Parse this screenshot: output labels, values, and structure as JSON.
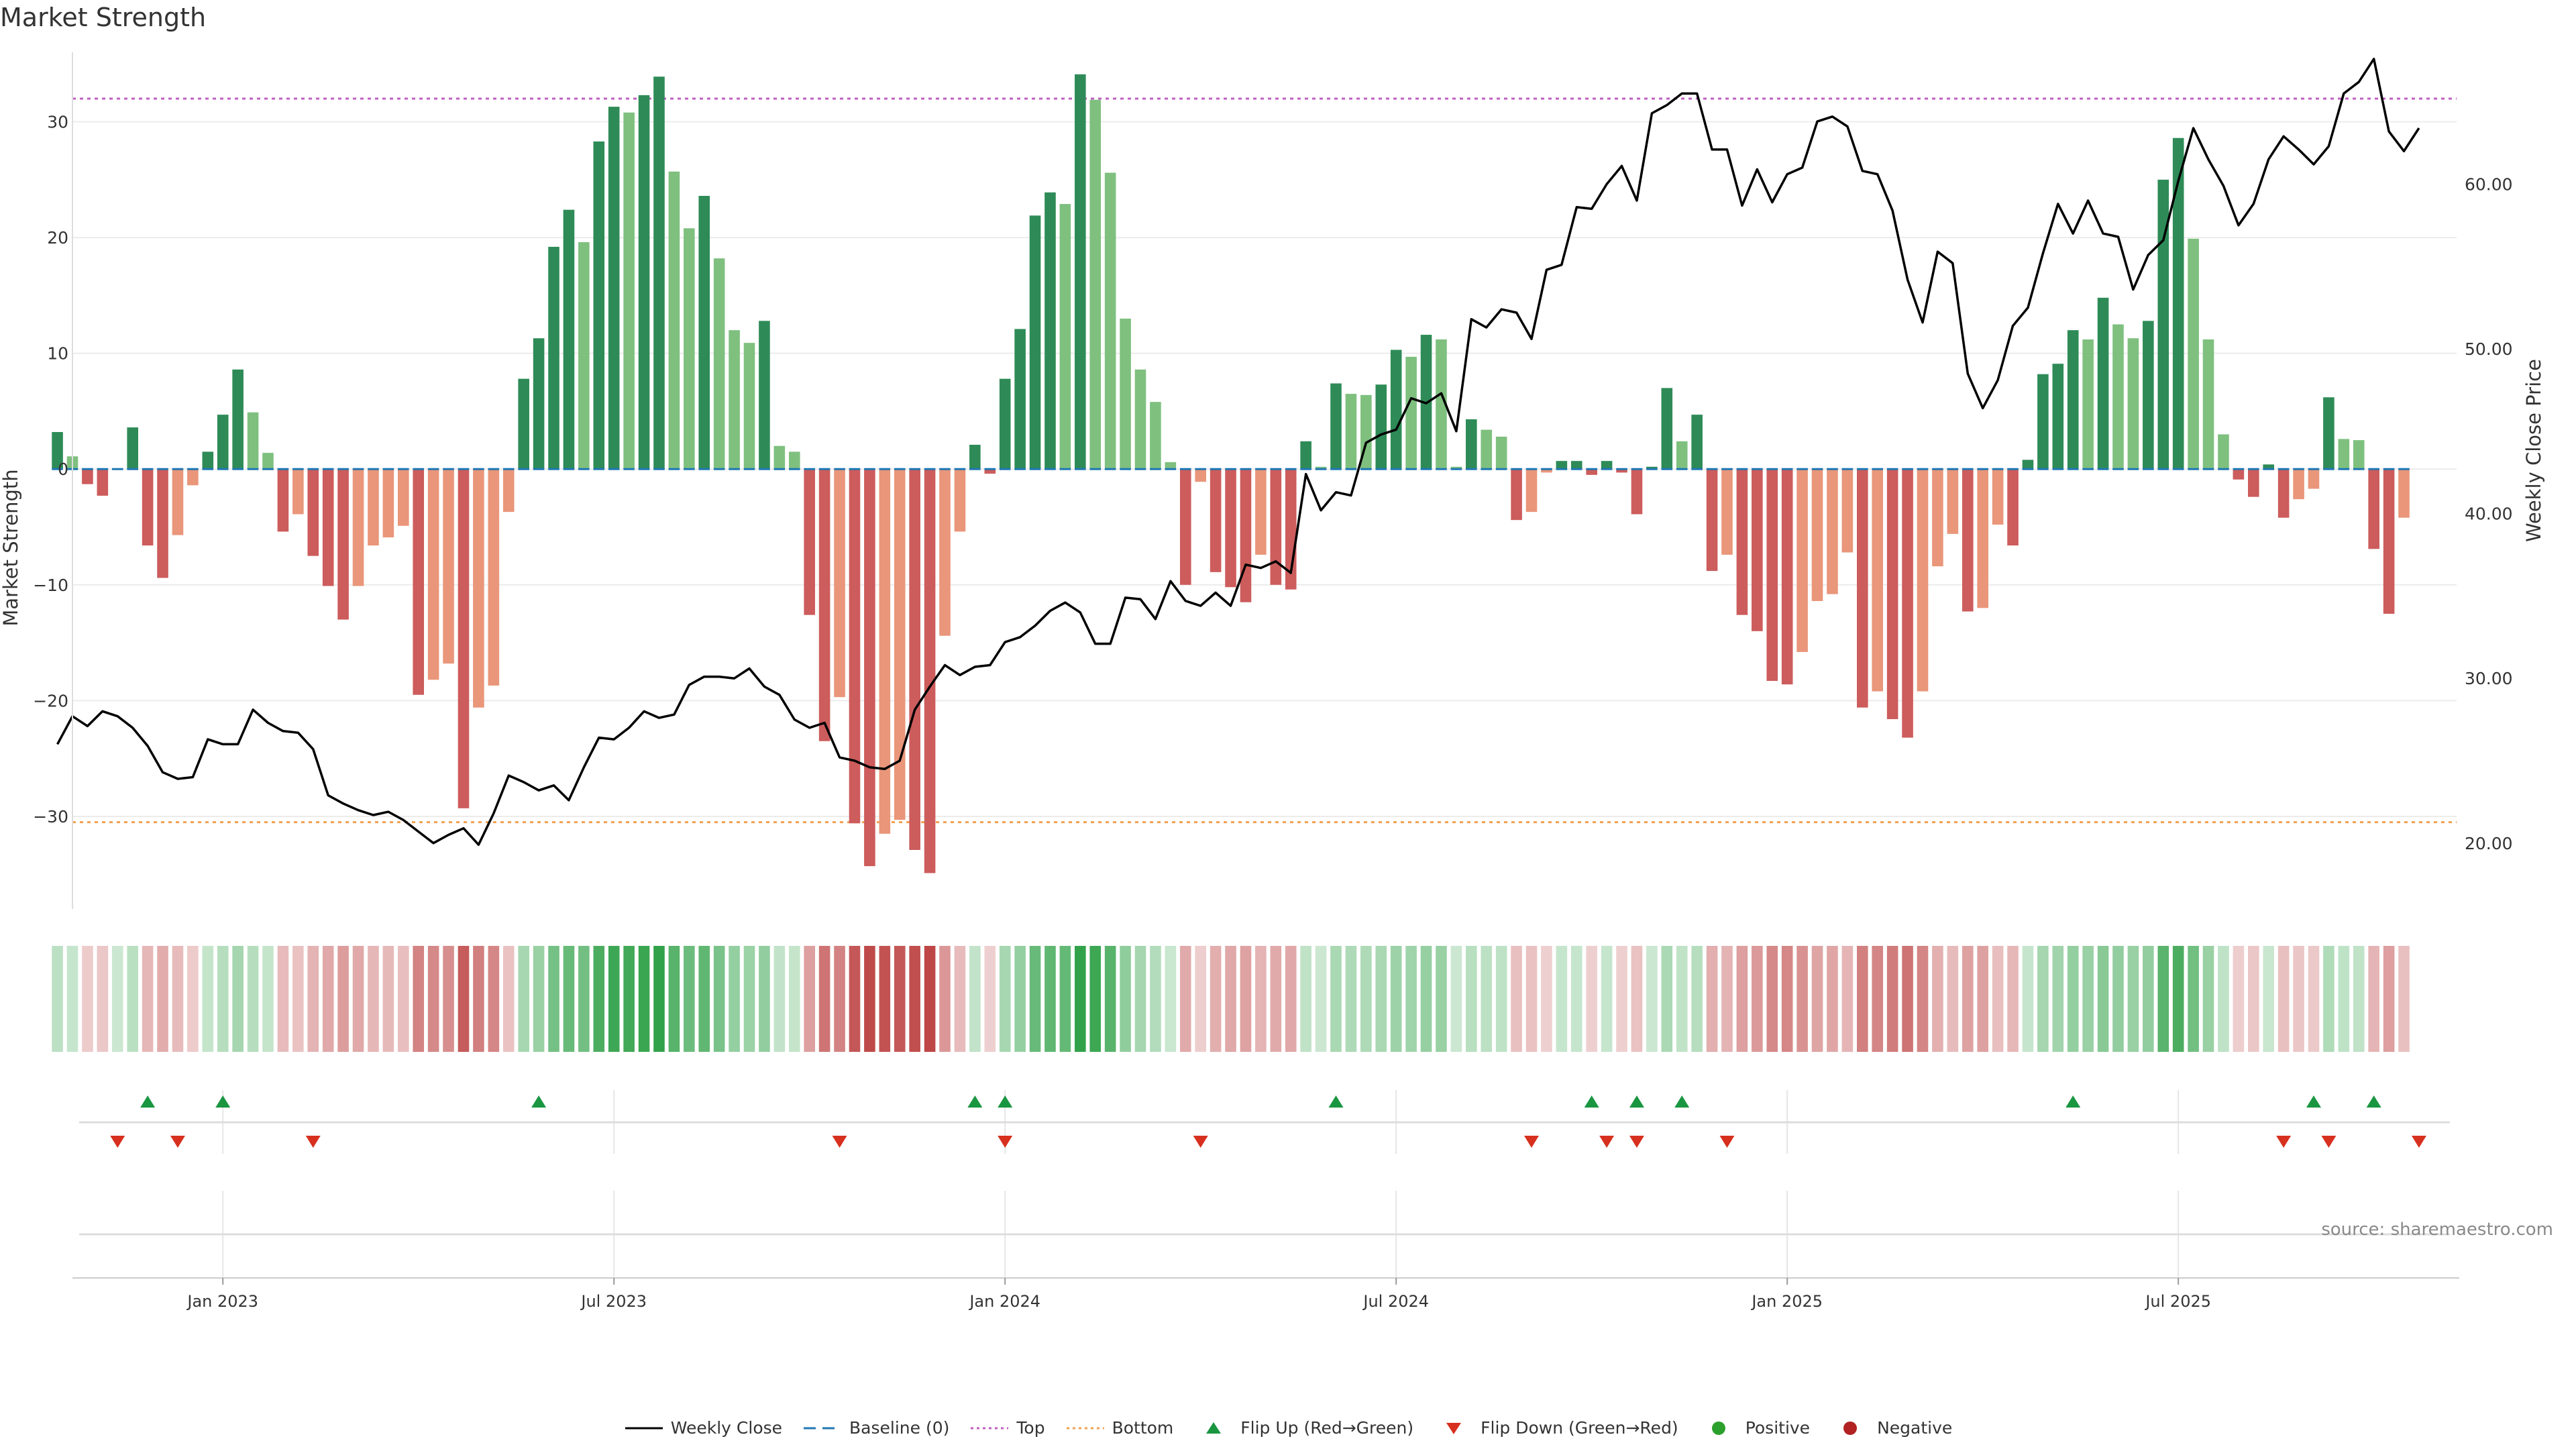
{
  "title": "Market Strength",
  "source_note": "source: sharemaestro.com",
  "colors": {
    "pos_dark": "#2e8b57",
    "pos_light": "#7fc07f",
    "neg_dark": "#cd5c5c",
    "neg_light": "#e9967a",
    "line": "#000000",
    "baseline": "#1f77b4",
    "top": "#c060c0",
    "bottom": "#f0a050",
    "flip_up": "#1a9641",
    "flip_down": "#d7301f",
    "positive": "#2ca02c",
    "negative": "#b22222"
  },
  "chart_data": {
    "type": "bar",
    "title": "Market Strength",
    "ylabel": "Market Strength",
    "y2label": "Weekly Close Price",
    "ylim": [
      -38,
      36
    ],
    "y2lim": [
      16,
      68
    ],
    "yticks": [
      -30,
      -20,
      -10,
      0,
      10,
      20,
      30
    ],
    "yticklabels": [
      "−30",
      "−20",
      "−10",
      "0",
      "10",
      "20",
      "30"
    ],
    "y2ticks": [
      20,
      30,
      40,
      50,
      60
    ],
    "y2ticklabels": [
      "20.00",
      "30.00",
      "40.00",
      "50.00",
      "60.00"
    ],
    "xlim_weeks": [
      -10,
      148.5
    ],
    "xticks": [
      0,
      26,
      52,
      78,
      104,
      130
    ],
    "xticklabels": [
      "Jan 2023",
      "Jul 2023",
      "Jan 2024",
      "Jul 2024",
      "Jan 2025",
      "Jul 2025"
    ],
    "top_line": 32,
    "bottom_line": -30.5,
    "baseline": 0,
    "strength": [
      3.2,
      1.1,
      -1.3,
      -2.3,
      0,
      3.6,
      -6.6,
      -9.4,
      -5.7,
      -1.4,
      1.5,
      4.7,
      8.6,
      4.9,
      1.4,
      -5.4,
      -3.9,
      -7.5,
      -10.1,
      -13.0,
      -10.1,
      -6.6,
      -5.9,
      -4.9,
      -19.5,
      -18.2,
      -16.8,
      -29.3,
      -20.6,
      -18.7,
      -3.7,
      7.8,
      11.3,
      19.2,
      22.4,
      19.6,
      28.3,
      31.3,
      30.8,
      32.3,
      33.9,
      25.7,
      20.8,
      23.6,
      18.2,
      12.0,
      10.9,
      12.8,
      2.0,
      1.5,
      -12.6,
      -23.5,
      -19.7,
      -30.6,
      -34.3,
      -31.5,
      -30.3,
      -32.9,
      -34.9,
      -14.4,
      -5.4,
      2.1,
      -0.4,
      7.8,
      12.1,
      21.9,
      23.9,
      22.9,
      34.1,
      31.9,
      25.6,
      13.0,
      8.6,
      5.8,
      0.6,
      -10.0,
      -1.1,
      -8.9,
      -10.2,
      -11.5,
      -7.4,
      -10.0,
      -10.4,
      2.4,
      0.2,
      7.4,
      6.5,
      6.4,
      7.3,
      10.3,
      9.7,
      11.6,
      11.2,
      0.2,
      4.3,
      3.4,
      2.8,
      -4.4,
      -3.7,
      -0.3,
      0.7,
      0.7,
      -0.5,
      0.7,
      -0.3,
      -3.9,
      0.2,
      7.0,
      2.4,
      4.7,
      -8.8,
      -7.4,
      -12.6,
      -14.0,
      -18.3,
      -18.6,
      -15.8,
      -11.4,
      -10.8,
      -7.2,
      -20.6,
      -19.2,
      -21.6,
      -23.2,
      -19.2,
      -8.4,
      -5.6,
      -12.3,
      -12.0,
      -4.8,
      -6.6,
      0.8,
      8.2,
      9.1,
      12.0,
      11.2,
      14.8,
      12.5,
      11.3,
      12.8,
      25.0,
      28.6,
      19.9,
      11.2,
      3.0,
      -0.9,
      -2.4,
      0.4,
      -4.2,
      -2.6,
      -1.7,
      6.2,
      2.6,
      2.5,
      -6.9,
      -12.5,
      -4.2
    ],
    "close": [
      26.0,
      27.7,
      27.1,
      28.0,
      27.7,
      27.0,
      25.9,
      24.3,
      23.9,
      24.0,
      26.3,
      26.0,
      26.0,
      28.1,
      27.3,
      26.8,
      26.7,
      25.7,
      22.9,
      22.4,
      22.0,
      21.7,
      21.9,
      21.4,
      20.7,
      20.0,
      20.5,
      20.9,
      19.9,
      21.8,
      24.1,
      23.7,
      23.2,
      23.5,
      22.6,
      24.6,
      26.4,
      26.3,
      27.0,
      28.0,
      27.6,
      27.8,
      29.6,
      30.1,
      30.1,
      30.0,
      30.6,
      29.5,
      29.0,
      27.5,
      27.0,
      27.3,
      25.2,
      25.0,
      24.6,
      24.5,
      25.0,
      28.1,
      29.5,
      30.8,
      30.2,
      30.7,
      30.8,
      32.2,
      32.5,
      33.2,
      34.1,
      34.6,
      34.0,
      32.1,
      32.1,
      34.9,
      34.8,
      33.6,
      35.9,
      34.7,
      34.4,
      35.2,
      34.4,
      36.9,
      36.7,
      37.1,
      36.4,
      42.4,
      40.2,
      41.3,
      41.1,
      44.3,
      44.8,
      45.1,
      47.0,
      46.7,
      47.3,
      45.0,
      51.8,
      51.3,
      52.4,
      52.2,
      50.6,
      54.8,
      55.1,
      58.6,
      58.5,
      60.0,
      61.1,
      59.0,
      64.3,
      64.8,
      65.5,
      65.5,
      62.1,
      62.1,
      58.7,
      60.9,
      58.9,
      60.6,
      61.0,
      63.8,
      64.1,
      63.5,
      60.8,
      60.6,
      58.4,
      54.2,
      51.6,
      55.9,
      55.2,
      48.5,
      46.4,
      48.1,
      51.4,
      52.5,
      55.8,
      58.8,
      57.0,
      59.0,
      57.0,
      56.8,
      53.6,
      55.7,
      56.6,
      60.2,
      63.4,
      61.5,
      59.9,
      57.5,
      58.8,
      61.5,
      62.9,
      62.1,
      61.2,
      62.3,
      65.5,
      66.2,
      67.6,
      63.2,
      62.0,
      63.4
    ],
    "flip_up_weeks": [
      -5,
      0,
      21,
      50,
      52,
      74,
      91,
      94,
      97,
      123,
      139,
      143
    ],
    "flip_down_weeks": [
      -7,
      -3,
      6,
      41,
      52,
      65,
      87,
      92,
      94,
      100,
      137,
      140,
      146
    ]
  },
  "legend": [
    {
      "key": "line",
      "label": "Weekly Close"
    },
    {
      "key": "baseline",
      "label": "Baseline (0)"
    },
    {
      "key": "top",
      "label": "Top"
    },
    {
      "key": "bottom",
      "label": "Bottom"
    },
    {
      "key": "flip_up",
      "label": "Flip Up (Red→Green)"
    },
    {
      "key": "flip_down",
      "label": "Flip Down (Green→Red)"
    },
    {
      "key": "positive",
      "label": "Positive"
    },
    {
      "key": "negative",
      "label": "Negative"
    }
  ]
}
